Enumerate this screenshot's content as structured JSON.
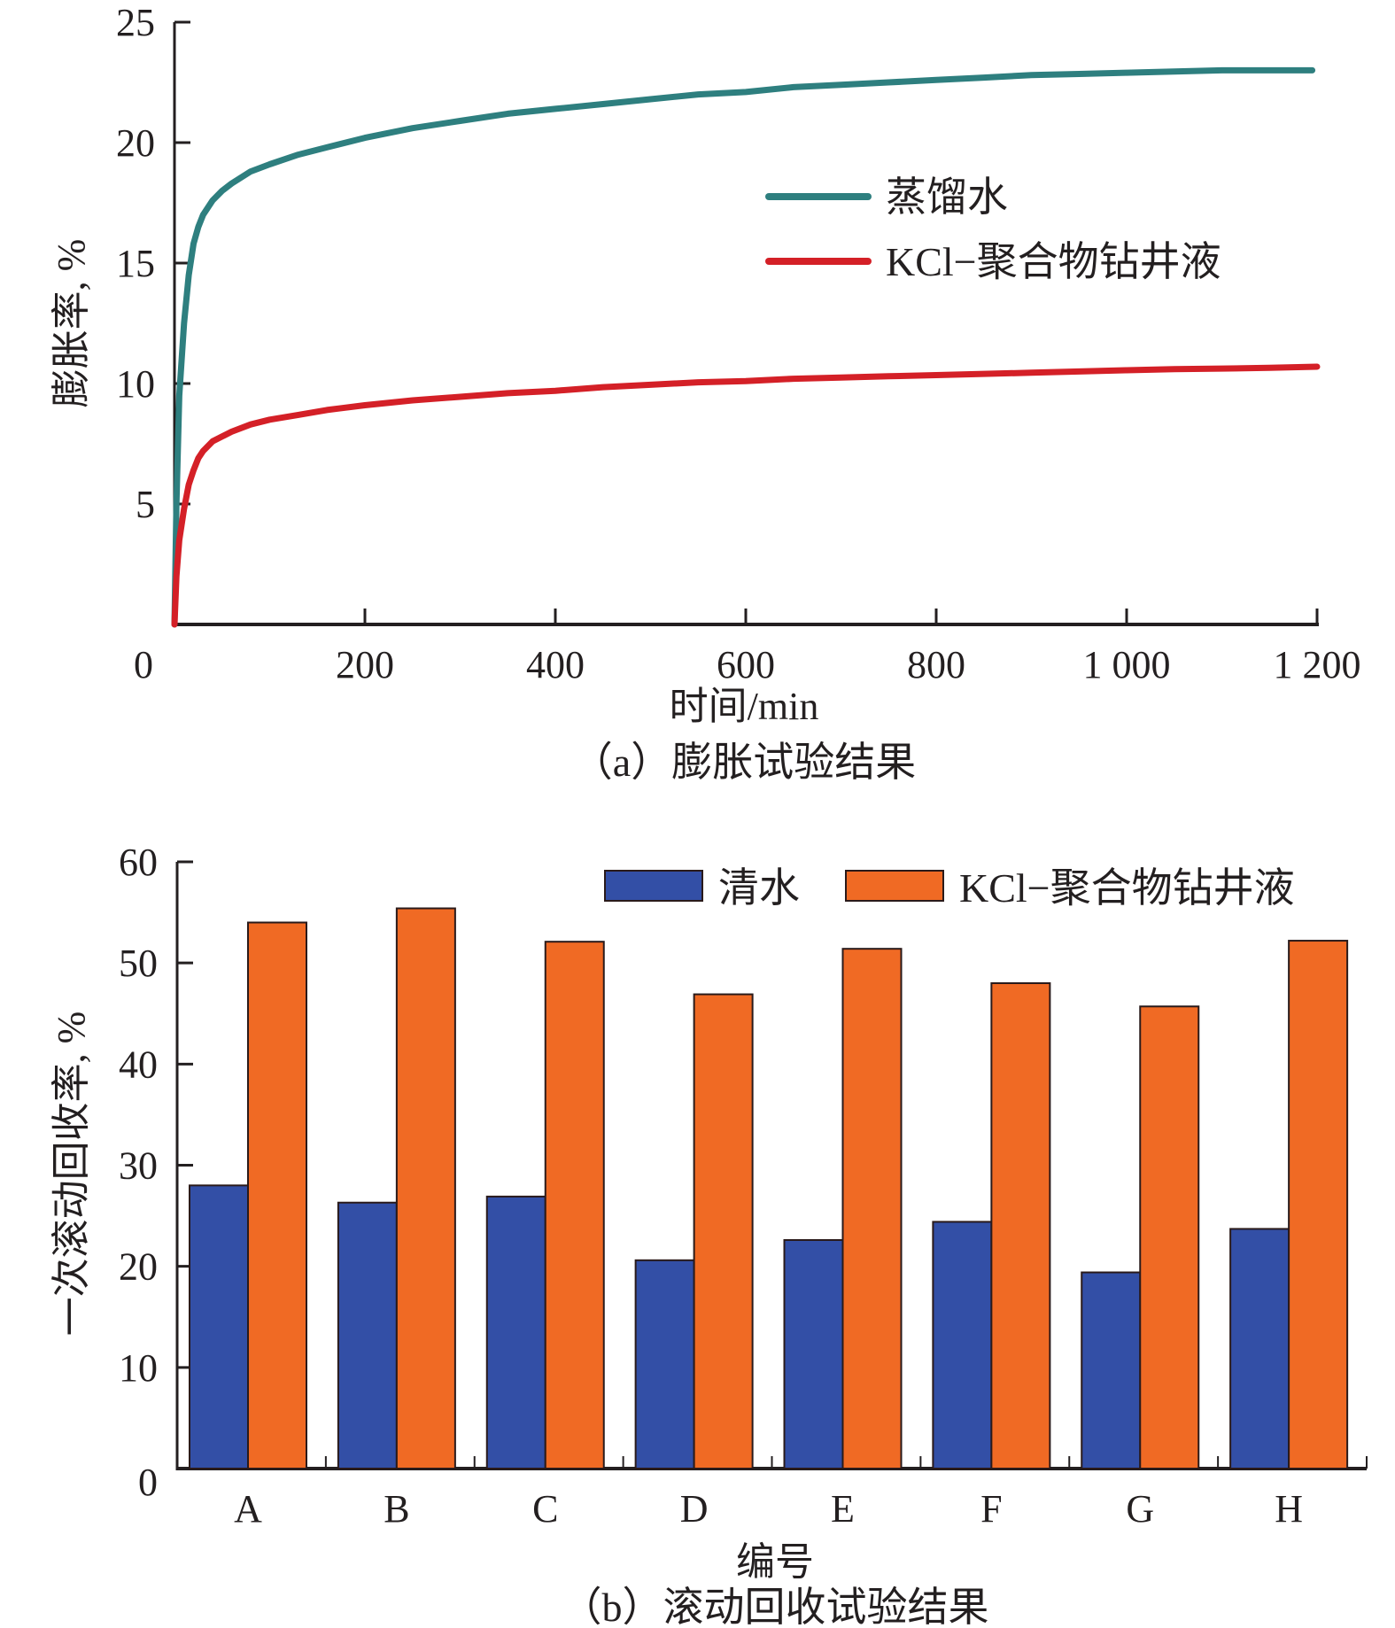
{
  "chart_data": [
    {
      "type": "line",
      "caption": "（a）膨胀试验结果",
      "xlabel": "时间/min",
      "ylabel": "膨胀率, %",
      "xlim": [
        0,
        1200
      ],
      "ylim": [
        0,
        25
      ],
      "x_ticks": [
        0,
        200,
        400,
        600,
        800,
        1000,
        1200
      ],
      "x_tick_labels": [
        "0",
        "200",
        "400",
        "600",
        "800",
        "1 000",
        "1 200"
      ],
      "y_ticks": [
        5,
        10,
        15,
        20,
        25
      ],
      "y_tick_labels": [
        "5",
        "10",
        "15",
        "20",
        "25"
      ],
      "grid": false,
      "legend_position": "center-right",
      "series": [
        {
          "name": "蒸馏水",
          "color": "#2e7f7f",
          "x": [
            0,
            2,
            5,
            10,
            15,
            20,
            25,
            30,
            40,
            50,
            60,
            80,
            100,
            130,
            160,
            200,
            250,
            300,
            350,
            400,
            450,
            500,
            550,
            600,
            650,
            700,
            750,
            800,
            850,
            900,
            950,
            1000,
            1050,
            1100,
            1150,
            1195
          ],
          "y": [
            0,
            5,
            9.5,
            12.5,
            14.5,
            15.8,
            16.5,
            17.0,
            17.6,
            18.0,
            18.3,
            18.8,
            19.1,
            19.5,
            19.8,
            20.2,
            20.6,
            20.9,
            21.2,
            21.4,
            21.6,
            21.8,
            22.0,
            22.1,
            22.3,
            22.4,
            22.5,
            22.6,
            22.7,
            22.8,
            22.85,
            22.9,
            22.95,
            23.0,
            23.0,
            23.0
          ]
        },
        {
          "name": "KCl−聚合物钻井液",
          "color": "#d42027",
          "x": [
            0,
            2,
            5,
            10,
            15,
            20,
            25,
            30,
            40,
            50,
            60,
            80,
            100,
            130,
            160,
            200,
            250,
            300,
            350,
            400,
            450,
            500,
            550,
            600,
            650,
            700,
            750,
            800,
            850,
            900,
            950,
            1000,
            1050,
            1100,
            1150,
            1200
          ],
          "y": [
            0,
            2.0,
            3.5,
            4.8,
            5.8,
            6.4,
            6.9,
            7.2,
            7.6,
            7.8,
            8.0,
            8.3,
            8.5,
            8.7,
            8.9,
            9.1,
            9.3,
            9.45,
            9.6,
            9.7,
            9.85,
            9.95,
            10.05,
            10.1,
            10.2,
            10.25,
            10.3,
            10.35,
            10.4,
            10.45,
            10.5,
            10.55,
            10.6,
            10.62,
            10.65,
            10.7
          ]
        }
      ]
    },
    {
      "type": "bar",
      "caption": "（b）滚动回收试验结果",
      "xlabel": "编号",
      "ylabel": "一次滚动回收率, %",
      "ylim": [
        0,
        60
      ],
      "y_ticks": [
        0,
        10,
        20,
        30,
        40,
        50,
        60
      ],
      "y_tick_labels": [
        "0",
        "10",
        "20",
        "30",
        "40",
        "50",
        "60"
      ],
      "grid": false,
      "legend_position": "top-right",
      "categories": [
        "A",
        "B",
        "C",
        "D",
        "E",
        "F",
        "G",
        "H"
      ],
      "series": [
        {
          "name": "清水",
          "color": "#334fa6",
          "values": [
            28.0,
            26.3,
            26.9,
            20.6,
            22.6,
            24.4,
            19.4,
            23.7
          ]
        },
        {
          "name": "KCl−聚合物钻井液",
          "color": "#f06a24",
          "values": [
            54.0,
            55.4,
            52.1,
            46.9,
            51.4,
            48.0,
            45.7,
            52.2
          ]
        }
      ]
    }
  ]
}
